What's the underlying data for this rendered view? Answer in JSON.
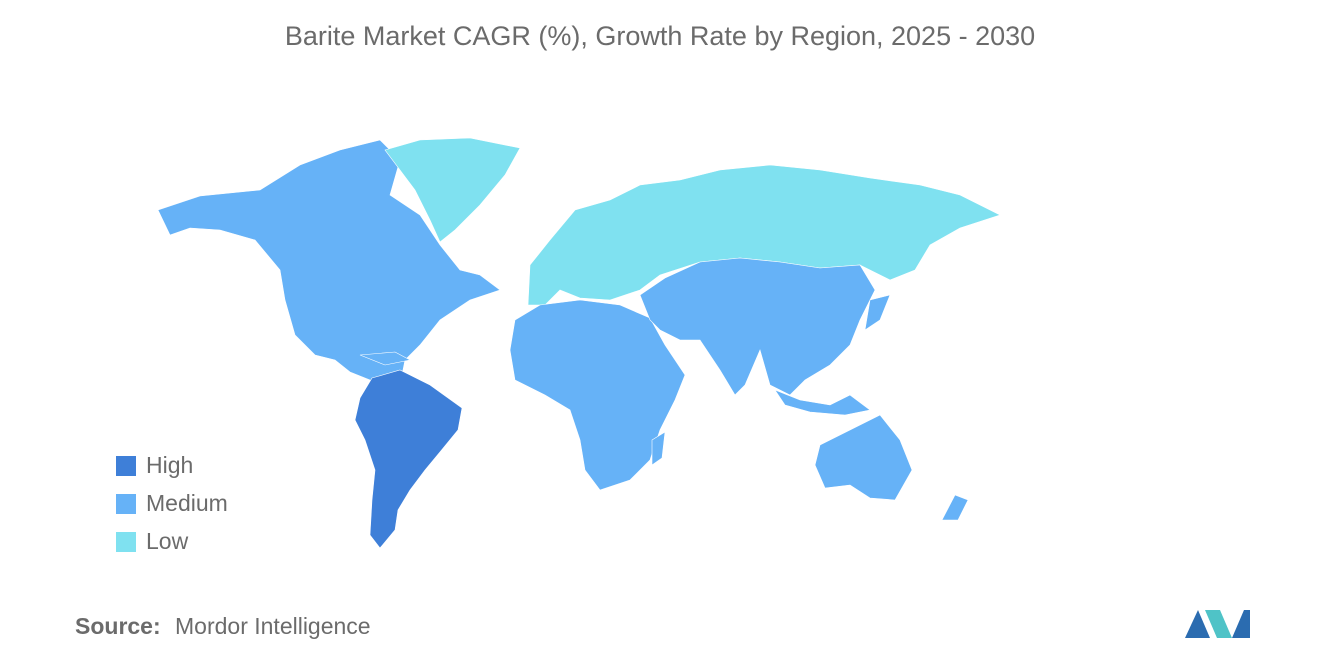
{
  "title": "Barite Market CAGR (%), Growth Rate by Region, 2025 - 2030",
  "legend": [
    {
      "label": "High",
      "color": "#3e7fd8"
    },
    {
      "label": "Medium",
      "color": "#66b2f7"
    },
    {
      "label": "Low",
      "color": "#7fe1f0"
    }
  ],
  "source": {
    "label": "Source:",
    "text": "Mordor Intelligence"
  }
}
